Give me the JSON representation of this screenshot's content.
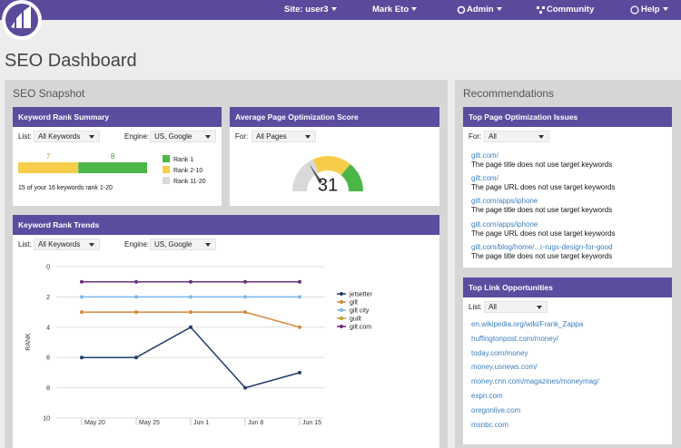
{
  "nav": {
    "site": "Site: user3",
    "user": "Mark Eto",
    "admin": "Admin",
    "community": "Community",
    "help": "Help"
  },
  "page_title": "SEO Dashboard",
  "snapshot": {
    "title": "SEO Snapshot",
    "rank_summary": {
      "title": "Keyword Rank Summary",
      "list_label": "List:",
      "list_value": "All Keywords",
      "engine_label": "Engine:",
      "engine_value": "US, Google",
      "segments": [
        {
          "name": "Rank 1",
          "color": "#4cb648",
          "value": 8
        },
        {
          "name": "Rank 2-10",
          "color": "#f6cd4a",
          "value": 7
        },
        {
          "name": "Rank 11-20",
          "color": "#d9d9d9",
          "value": 0
        }
      ],
      "note": "15 of your 16 keywords rank 1-20"
    },
    "optimization": {
      "title": "Average Page Optimization Score",
      "for_label": "For:",
      "for_value": "All Pages",
      "score": 31,
      "range": [
        0,
        100
      ]
    },
    "trends": {
      "title": "Keyword Rank Trends",
      "list_label": "List:",
      "list_value": "All Keywords",
      "engine_label": "Engine:",
      "engine_value": "US, Google"
    }
  },
  "chart_data": {
    "type": "line",
    "y_label": "RANK",
    "categories": [
      "May 20",
      "May 25",
      "Jun 1",
      "Jun 8",
      "Jun 15"
    ],
    "ylim": [
      0,
      10
    ],
    "yticks": [
      0,
      2,
      4,
      6,
      8,
      10
    ],
    "y_inverted": true,
    "grid": true,
    "legend": "right",
    "series": [
      {
        "name": "jetsetter",
        "color": "#1f3d6b",
        "values": [
          6,
          6,
          4,
          8,
          7
        ]
      },
      {
        "name": "gilt",
        "color": "#d4893a",
        "values": [
          3,
          3,
          3,
          3,
          4
        ]
      },
      {
        "name": "gilt city",
        "color": "#7bb8ea",
        "values": [
          2,
          2,
          2,
          2,
          2
        ]
      },
      {
        "name": "guilt",
        "color": "#c99a3a",
        "values": [
          null,
          null,
          null,
          null,
          null
        ]
      },
      {
        "name": "gilt.com",
        "color": "#6b2f7a",
        "values": [
          1,
          1,
          1,
          1,
          1
        ]
      }
    ]
  },
  "recommendations": {
    "title": "Recommendations",
    "issues": {
      "title": "Top Page Optimization Issues",
      "for_label": "For:",
      "for_value": "All",
      "items": [
        {
          "link": "gilt.com/",
          "text": "The page title does not use target keywords"
        },
        {
          "link": "gilt.com/",
          "text": "The page URL does not use target keywords"
        },
        {
          "link": "gilt.com/apps/iphone",
          "text": "The page title does not use target keywords"
        },
        {
          "link": "gilt.com/apps/iphone",
          "text": "The page URL does not use target keywords"
        },
        {
          "link": "gilt.com/blog/home/...r-rugs-design-for-good",
          "text": "The page title does not use target keywords"
        }
      ]
    },
    "links": {
      "title": "Top Link Opportunities",
      "list_label": "List:",
      "list_value": "All",
      "items": [
        "en.wikipedia.org/wiki/Frank_Zappa",
        "huffingtonpost.com/money/",
        "today.com/money",
        "money.usnews.com/",
        "money.cnn.com/magazines/moneymag/",
        "espn.com",
        "oregonlive.com",
        "msnbc.com"
      ]
    }
  }
}
